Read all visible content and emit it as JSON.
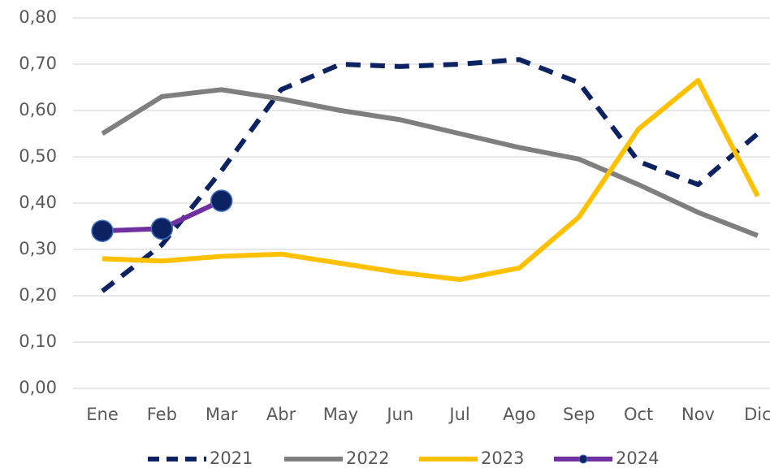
{
  "chart_data": {
    "type": "line",
    "categories": [
      "Ene",
      "Feb",
      "Mar",
      "Abr",
      "May",
      "Jun",
      "Jul",
      "Ago",
      "Sep",
      "Oct",
      "Nov",
      "Dic"
    ],
    "series": [
      {
        "name": "2021",
        "color": "#0d2260",
        "style": "dashed",
        "values": [
          0.21,
          0.31,
          0.47,
          0.645,
          0.7,
          0.695,
          0.7,
          0.71,
          0.66,
          0.49,
          0.44,
          0.55
        ]
      },
      {
        "name": "2022",
        "color": "#7f7f7f",
        "style": "solid",
        "values": [
          0.55,
          0.63,
          0.645,
          0.625,
          0.6,
          0.58,
          0.55,
          0.52,
          0.495,
          0.44,
          0.38,
          0.33
        ]
      },
      {
        "name": "2023",
        "color": "#ffc000",
        "style": "solid",
        "values": [
          0.28,
          0.275,
          0.285,
          0.29,
          0.27,
          0.25,
          0.235,
          0.26,
          0.37,
          0.56,
          0.665,
          0.415
        ]
      },
      {
        "name": "2024",
        "color": "#7030a0",
        "style": "solid",
        "markers": true,
        "marker_color": "#0d2260",
        "values": [
          0.34,
          0.345,
          0.405,
          null,
          null,
          null,
          null,
          null,
          null,
          null,
          null,
          null
        ]
      }
    ],
    "ylim": [
      0,
      0.8
    ],
    "yticks": [
      {
        "value": 0,
        "label": "0,00"
      },
      {
        "value": 0.1,
        "label": "0,10"
      },
      {
        "value": 0.2,
        "label": "0,20"
      },
      {
        "value": 0.3,
        "label": "0,30"
      },
      {
        "value": 0.4,
        "label": "0,40"
      },
      {
        "value": 0.5,
        "label": "0,50"
      },
      {
        "value": 0.6,
        "label": "0,60"
      },
      {
        "value": 0.7,
        "label": "0,70"
      },
      {
        "value": 0.8,
        "label": "0,80"
      }
    ],
    "grid": true,
    "legend": "bottom"
  }
}
